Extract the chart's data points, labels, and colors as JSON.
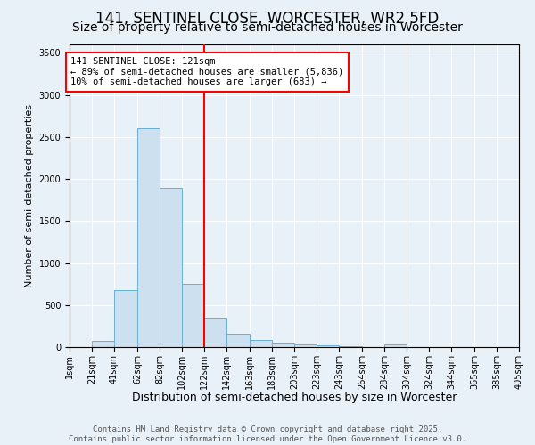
{
  "title": "141, SENTINEL CLOSE, WORCESTER, WR2 5FD",
  "subtitle": "Size of property relative to semi-detached houses in Worcester",
  "xlabel": "Distribution of semi-detached houses by size in Worcester",
  "ylabel": "Number of semi-detached properties",
  "bin_edges": [
    1,
    21,
    41,
    62,
    82,
    102,
    122,
    142,
    163,
    183,
    203,
    223,
    243,
    264,
    284,
    304,
    324,
    344,
    365,
    385,
    405
  ],
  "bar_heights": [
    0,
    70,
    680,
    2600,
    1900,
    750,
    350,
    155,
    90,
    55,
    30,
    25,
    10,
    0,
    30,
    0,
    0,
    0,
    0,
    0
  ],
  "bar_facecolor": "#cce0f0",
  "bar_edgecolor": "#6baed6",
  "vline_x": 122,
  "vline_color": "red",
  "annotation_text": "141 SENTINEL CLOSE: 121sqm\n← 89% of semi-detached houses are smaller (5,836)\n10% of semi-detached houses are larger (683) →",
  "annotation_box_color": "white",
  "annotation_box_edgecolor": "red",
  "ylim": [
    0,
    3600
  ],
  "yticks": [
    0,
    500,
    1000,
    1500,
    2000,
    2500,
    3000,
    3500
  ],
  "background_color": "#e8f0f8",
  "plot_bg_color": "#e8f0f8",
  "footer_line1": "Contains HM Land Registry data © Crown copyright and database right 2025.",
  "footer_line2": "Contains public sector information licensed under the Open Government Licence v3.0.",
  "title_fontsize": 12,
  "subtitle_fontsize": 10,
  "xlabel_fontsize": 9,
  "ylabel_fontsize": 8,
  "tick_fontsize": 7,
  "footer_fontsize": 6.5,
  "annot_fontsize": 7.5
}
